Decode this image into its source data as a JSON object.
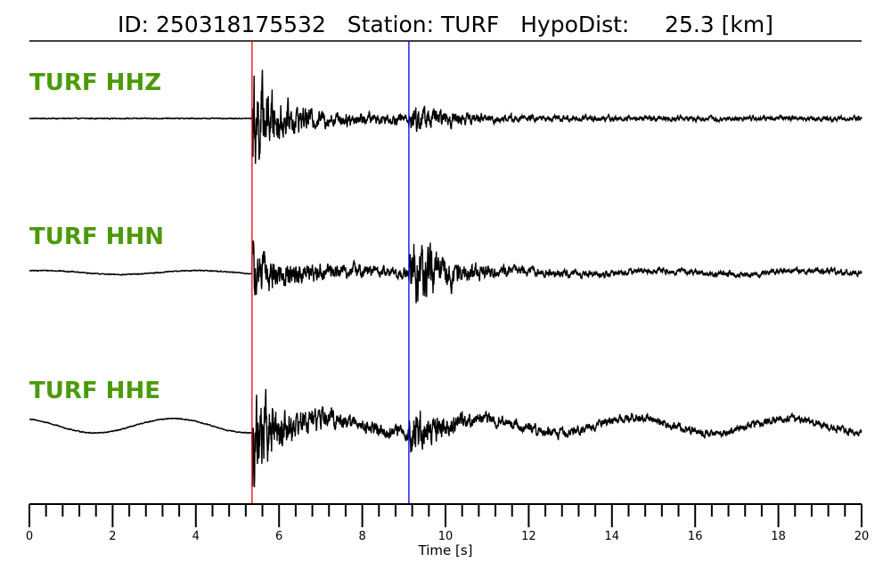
{
  "chart_data": {
    "type": "line",
    "title": "ID: 250318175532   Station: TURF   HypoDist:     25.3 [km]",
    "xlabel": "Time [s]",
    "xlim": [
      0,
      20
    ],
    "major_ticks": [
      0,
      2,
      4,
      6,
      8,
      10,
      12,
      14,
      16,
      18,
      20
    ],
    "minor_tick_step": 0.4,
    "label_color": "#4c9a0a",
    "trace_color": "#000000",
    "grid": false,
    "picks": [
      {
        "phase": "P",
        "time": 5.35,
        "color": "#ff0000"
      },
      {
        "phase": "S",
        "time": 9.12,
        "color": "#0000ff"
      }
    ],
    "series": [
      {
        "name": "TURF HHZ",
        "onset": 5.35,
        "s_time": 9.12,
        "pre_noise": 0.01,
        "p_amp": 0.95,
        "s_amp": 0.28,
        "coda_level": 0.05,
        "pre_wave": 0.0
      },
      {
        "name": "TURF HHN",
        "onset": 5.35,
        "s_time": 9.12,
        "pre_noise": 0.01,
        "p_amp": 0.38,
        "s_amp": 0.85,
        "coda_level": 0.06,
        "pre_wave": 0.025
      },
      {
        "name": "TURF HHE",
        "onset": 5.35,
        "s_time": 9.12,
        "pre_noise": 0.01,
        "p_amp": 0.85,
        "s_amp": 0.45,
        "coda_level": 0.08,
        "pre_wave": 0.09
      }
    ]
  }
}
